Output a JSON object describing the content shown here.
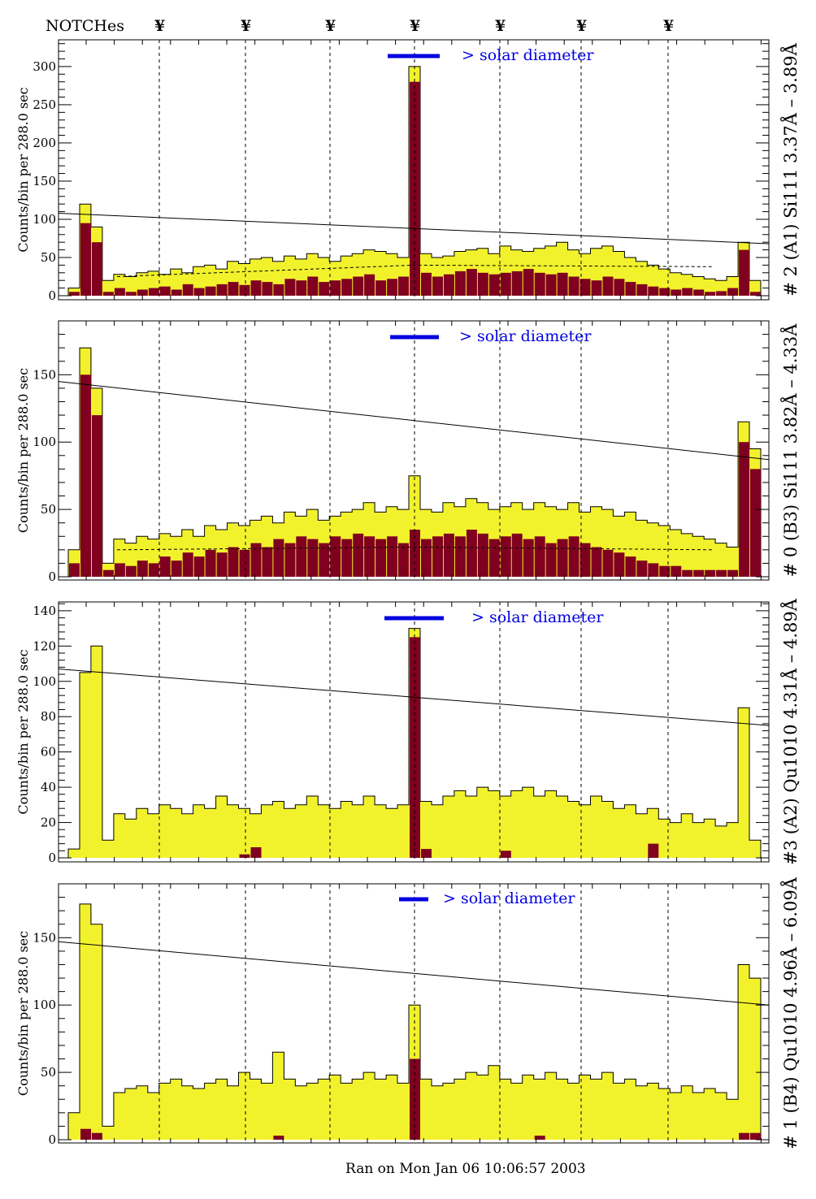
{
  "header": {
    "title": "NOTCHes",
    "notch_symbol": "¥",
    "notch_count": 7
  },
  "footer": {
    "ran_on": "Ran on Mon Jan 06 10:06:57 2003"
  },
  "colors": {
    "total": "#f2f22c",
    "selected": "#800020",
    "solar_bar": "#0000e0",
    "frame": "#000000"
  },
  "chart_data": [
    {
      "type": "bar",
      "title": "# 2 (A1) Si111  3.37Å – 3.89Å",
      "ylabel": "Counts/bin per   288.0 sec",
      "solar_label": "> solar diameter",
      "yticks": [
        "0",
        "50",
        "100",
        "150",
        "200",
        "250",
        "300"
      ],
      "ylim": [
        0,
        335
      ],
      "fit_line": [
        108,
        68
      ],
      "dashed_level": [
        25,
        40,
        38
      ],
      "series": [
        {
          "name": "total",
          "values": [
            10,
            120,
            90,
            20,
            28,
            25,
            30,
            32,
            28,
            35,
            30,
            38,
            40,
            35,
            45,
            42,
            48,
            50,
            45,
            52,
            48,
            55,
            50,
            45,
            52,
            55,
            60,
            58,
            55,
            50,
            300,
            55,
            50,
            52,
            58,
            60,
            62,
            55,
            65,
            60,
            58,
            62,
            65,
            70,
            60,
            55,
            62,
            65,
            58,
            50,
            45,
            40,
            35,
            30,
            28,
            25,
            22,
            20,
            25,
            70,
            20
          ]
        },
        {
          "name": "selected",
          "values": [
            5,
            95,
            70,
            5,
            10,
            5,
            8,
            10,
            12,
            8,
            15,
            10,
            12,
            15,
            18,
            14,
            20,
            18,
            15,
            22,
            20,
            25,
            18,
            20,
            22,
            25,
            28,
            20,
            22,
            25,
            280,
            30,
            25,
            28,
            32,
            35,
            30,
            28,
            30,
            32,
            35,
            30,
            28,
            30,
            25,
            22,
            20,
            25,
            22,
            18,
            15,
            12,
            10,
            8,
            10,
            8,
            5,
            6,
            10,
            60,
            5
          ]
        }
      ]
    },
    {
      "type": "bar",
      "title": "# 0 (B3) Si111  3.82Å – 4.33Å",
      "ylabel": "Counts/bin per   288.0 sec",
      "solar_label": "> solar diameter",
      "yticks": [
        "0",
        "50",
        "100",
        "150"
      ],
      "ylim": [
        0,
        190
      ],
      "fit_line": [
        145,
        87
      ],
      "dashed_level": [
        20,
        22,
        20
      ],
      "series": [
        {
          "name": "total",
          "values": [
            20,
            170,
            140,
            10,
            28,
            25,
            30,
            28,
            32,
            30,
            35,
            30,
            38,
            35,
            40,
            38,
            42,
            45,
            40,
            48,
            45,
            50,
            42,
            45,
            48,
            50,
            55,
            48,
            52,
            50,
            75,
            50,
            48,
            55,
            52,
            58,
            55,
            50,
            52,
            55,
            50,
            55,
            52,
            50,
            55,
            48,
            52,
            50,
            45,
            48,
            42,
            40,
            38,
            35,
            32,
            30,
            28,
            25,
            22,
            115,
            95
          ]
        },
        {
          "name": "selected",
          "values": [
            10,
            150,
            120,
            5,
            10,
            8,
            12,
            10,
            15,
            12,
            18,
            15,
            20,
            18,
            22,
            20,
            25,
            22,
            28,
            25,
            30,
            28,
            25,
            30,
            28,
            32,
            30,
            28,
            30,
            25,
            35,
            28,
            30,
            32,
            30,
            35,
            32,
            28,
            30,
            32,
            28,
            30,
            25,
            28,
            30,
            25,
            22,
            20,
            18,
            15,
            12,
            10,
            8,
            8,
            5,
            5,
            5,
            5,
            5,
            100,
            80
          ]
        }
      ]
    },
    {
      "type": "bar",
      "title": "#3 (A2) Qu1010  4.31Å – 4.89Å",
      "ylabel": "Counts/bin per   288.0 sec",
      "solar_label": "> solar diameter",
      "yticks": [
        "0",
        "20",
        "40",
        "60",
        "80",
        "100",
        "120",
        "140"
      ],
      "ylim": [
        0,
        145
      ],
      "fit_line": [
        107,
        75
      ],
      "dashed_level": null,
      "series": [
        {
          "name": "total",
          "values": [
            5,
            105,
            120,
            10,
            25,
            22,
            28,
            25,
            30,
            28,
            25,
            30,
            28,
            35,
            30,
            28,
            25,
            30,
            32,
            28,
            30,
            35,
            30,
            28,
            32,
            30,
            35,
            30,
            28,
            30,
            130,
            32,
            30,
            35,
            38,
            35,
            40,
            38,
            35,
            38,
            40,
            35,
            38,
            35,
            32,
            30,
            35,
            32,
            28,
            30,
            25,
            28,
            22,
            20,
            25,
            20,
            22,
            18,
            20,
            85,
            10
          ]
        },
        {
          "name": "selected",
          "values": [
            0,
            0,
            0,
            0,
            0,
            0,
            0,
            0,
            0,
            0,
            0,
            0,
            0,
            0,
            0,
            2,
            6,
            0,
            0,
            0,
            0,
            0,
            0,
            0,
            0,
            0,
            0,
            0,
            0,
            0,
            125,
            5,
            0,
            0,
            0,
            0,
            0,
            0,
            4,
            0,
            0,
            0,
            0,
            0,
            0,
            0,
            0,
            0,
            0,
            0,
            0,
            8,
            0,
            0,
            0,
            0,
            0,
            0,
            0,
            0,
            0
          ]
        }
      ]
    },
    {
      "type": "bar",
      "title": "# 1 (B4) Qu1010 4.96Å – 6.09Å",
      "ylabel": "Counts/bin per   288.0 sec",
      "solar_label": "> solar diameter",
      "yticks": [
        "0",
        "50",
        "100",
        "150"
      ],
      "ylim": [
        0,
        190
      ],
      "fit_line": [
        147,
        100
      ],
      "dashed_level": null,
      "series": [
        {
          "name": "total",
          "values": [
            20,
            175,
            160,
            10,
            35,
            38,
            40,
            35,
            42,
            45,
            40,
            38,
            42,
            45,
            40,
            50,
            45,
            42,
            65,
            45,
            40,
            42,
            45,
            48,
            42,
            45,
            50,
            45,
            48,
            42,
            100,
            45,
            40,
            42,
            45,
            50,
            48,
            55,
            45,
            42,
            48,
            45,
            50,
            45,
            42,
            48,
            45,
            50,
            42,
            45,
            40,
            42,
            38,
            35,
            40,
            35,
            38,
            35,
            30,
            130,
            120
          ]
        },
        {
          "name": "selected",
          "values": [
            0,
            8,
            5,
            0,
            0,
            0,
            0,
            0,
            0,
            0,
            0,
            0,
            0,
            0,
            0,
            0,
            0,
            0,
            3,
            0,
            0,
            0,
            0,
            0,
            0,
            0,
            0,
            0,
            0,
            0,
            60,
            0,
            0,
            0,
            0,
            0,
            0,
            0,
            0,
            0,
            0,
            3,
            0,
            0,
            0,
            0,
            0,
            0,
            0,
            0,
            0,
            0,
            0,
            0,
            0,
            0,
            0,
            0,
            0,
            5,
            5
          ]
        }
      ]
    }
  ]
}
